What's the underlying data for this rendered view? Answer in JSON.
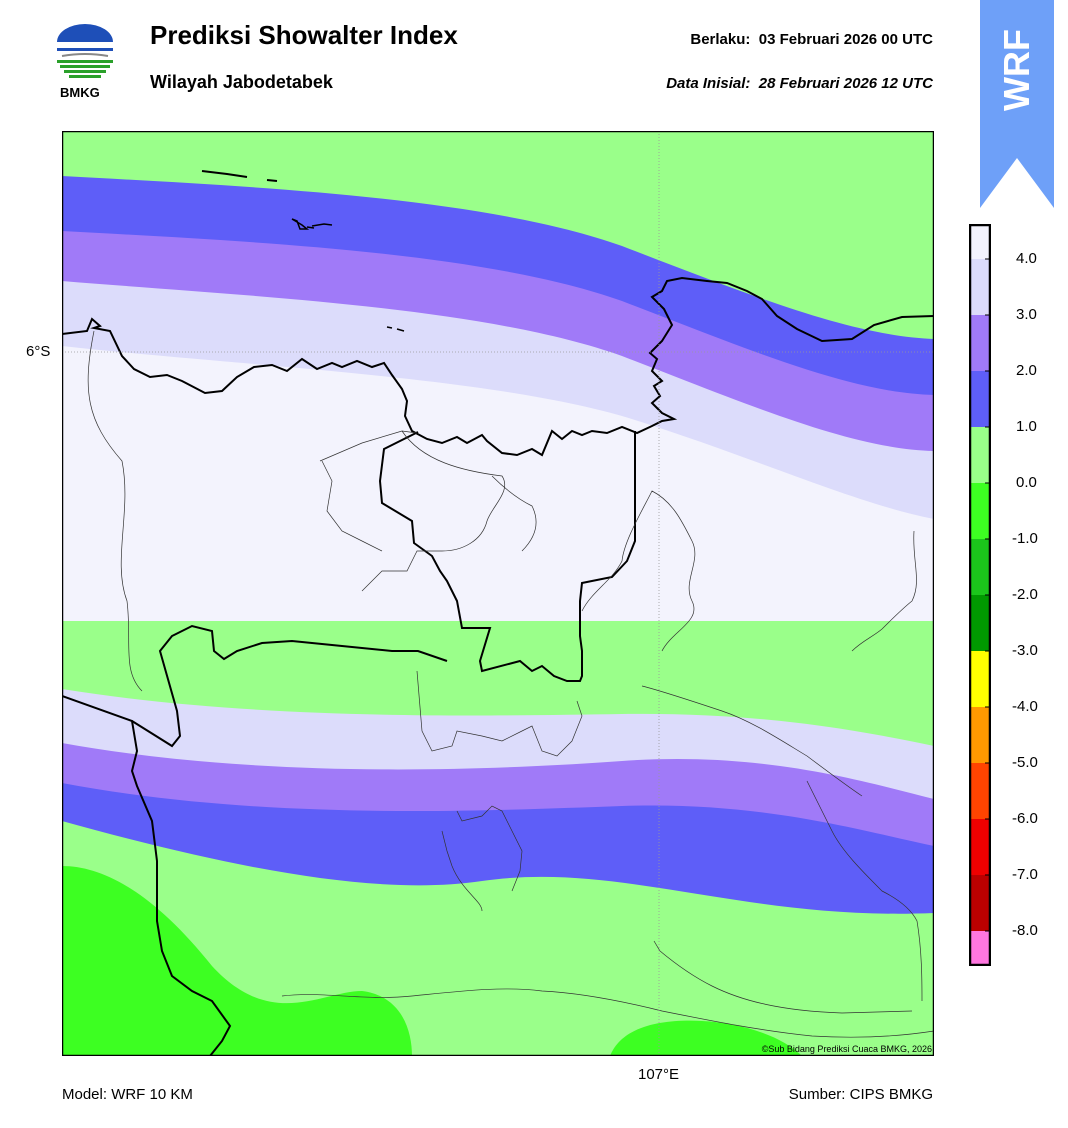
{
  "header": {
    "title": "Prediksi Showalter Index",
    "subtitle": "Wilayah Jabodetabek",
    "valid_label": "Berlaku:",
    "valid_value": "03 Februari 2026 00 UTC",
    "init_label": "Data Inisial:",
    "init_value": "28 Februari 2026 12 UTC",
    "logo_text": "BMKG",
    "badge_text": "WRF"
  },
  "map": {
    "lat_label": "6°S",
    "lon_label": "107°E",
    "copyright": "©Sub Bidang Prediksi Cuaca BMKG, 2026"
  },
  "colorbar": {
    "labels": [
      "4.0",
      "3.0",
      "2.0",
      "1.0",
      "0.0",
      "-1.0",
      "-2.0",
      "-3.0",
      "-4.0",
      "-5.0",
      "-6.0",
      "-7.0",
      "-8.0"
    ],
    "colors": [
      "#f3f3fd",
      "#dcdcfb",
      "#a07af8",
      "#5e5ef8",
      "#9aff8a",
      "#3dff22",
      "#1bc61b",
      "#009900",
      "#ffff00",
      "#ff9900",
      "#ff4400",
      "#ee0000",
      "#bb0000",
      "#ff77e0",
      "#cc00cc",
      "#661166"
    ]
  },
  "footer": {
    "model": "Model: WRF 10 KM",
    "source": "Sumber: CIPS BMKG"
  }
}
